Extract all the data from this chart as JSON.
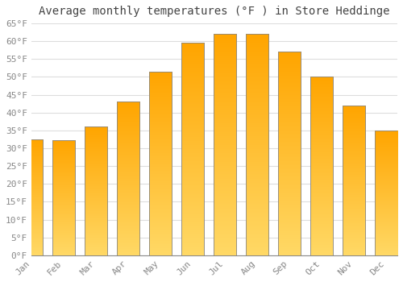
{
  "title": "Average monthly temperatures (°F ) in Store Heddinge",
  "months": [
    "Jan",
    "Feb",
    "Mar",
    "Apr",
    "May",
    "Jun",
    "Jul",
    "Aug",
    "Sep",
    "Oct",
    "Nov",
    "Dec"
  ],
  "values": [
    32.5,
    32.2,
    36.0,
    43.0,
    51.5,
    59.5,
    62.0,
    62.0,
    57.0,
    50.0,
    42.0,
    35.0
  ],
  "bar_color_top": "#FFD966",
  "bar_color_bottom": "#FFA500",
  "bar_edge_color": "#888888",
  "ylim": [
    0,
    65
  ],
  "yticks": [
    0,
    5,
    10,
    15,
    20,
    25,
    30,
    35,
    40,
    45,
    50,
    55,
    60,
    65
  ],
  "ytick_labels": [
    "0°F",
    "5°F",
    "10°F",
    "15°F",
    "20°F",
    "25°F",
    "30°F",
    "35°F",
    "40°F",
    "45°F",
    "50°F",
    "55°F",
    "60°F",
    "65°F"
  ],
  "bg_color": "#ffffff",
  "plot_bg_color": "#ffffff",
  "grid_color": "#dddddd",
  "tick_color": "#888888",
  "title_fontsize": 10,
  "tick_fontsize": 8,
  "bar_width": 0.7
}
